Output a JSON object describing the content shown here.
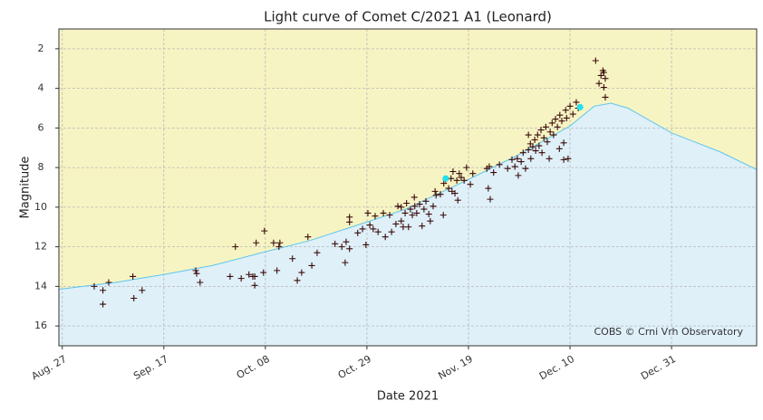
{
  "chart_data": {
    "type": "scatter",
    "title": "Light curve of Comet C/2021 A1 (Leonard)",
    "x_label": "Date 2021",
    "y_label": "Magnitude",
    "annotation": "COBS © Crni Vrh Observatory",
    "xlim": [
      238.3,
      382.6
    ],
    "ylim": [
      17,
      1
    ],
    "xticks": [
      {
        "value": 239,
        "label": "Aug. 27"
      },
      {
        "value": 260,
        "label": "Sep. 17"
      },
      {
        "value": 281,
        "label": "Oct. 08"
      },
      {
        "value": 302,
        "label": "Oct. 29"
      },
      {
        "value": 323,
        "label": "Nov. 19"
      },
      {
        "value": 344,
        "label": "Dec. 10"
      },
      {
        "value": 365,
        "label": "Dec. 31"
      }
    ],
    "yticks": [
      2,
      4,
      6,
      8,
      10,
      12,
      14,
      16
    ],
    "grid": true,
    "fill_above": "#f7f4c3",
    "fill_below": "#dff0f9",
    "series": [
      {
        "color": "#3a0a0a",
        "marker": "plus",
        "x": [
          245.6,
          247.4,
          247.4,
          248.6,
          253.6,
          253.8,
          255.5,
          266.6,
          266.8,
          267.5,
          273.7,
          274.8,
          276.0,
          277.6,
          278.4,
          278.8,
          278.8,
          279.1,
          280.6,
          280.8,
          282.7,
          283.4,
          283.8,
          284.0,
          286.6,
          287.6,
          288.5,
          289.8,
          290.6,
          291.7,
          295.4,
          296.8,
          297.5,
          297.7,
          298.4,
          298.4,
          298.4,
          300.1,
          301.1,
          301.8,
          302.2,
          302.6,
          303.3,
          303.7,
          304.3,
          305.4,
          305.8,
          306.7,
          307.1,
          308.0,
          308.4,
          309.1,
          309.1,
          309.5,
          309.9,
          310.2,
          310.6,
          311.0,
          311.4,
          311.8,
          311.9,
          312.3,
          312.9,
          313.4,
          313.8,
          314.2,
          314.8,
          315.1,
          315.7,
          316.1,
          316.3,
          317.2,
          317.8,
          317.9,
          318.3,
          318.9,
          319.4,
          319.6,
          319.8,
          320.2,
          320.6,
          320.8,
          321.1,
          321.5,
          322.1,
          322.6,
          323.4,
          323.9,
          326.8,
          327.1,
          327.3,
          327.5,
          328.2,
          329.4,
          331.1,
          332.0,
          332.6,
          333.1,
          333.3,
          333.9,
          334.3,
          334.8,
          335.4,
          335.4,
          335.8,
          335.9,
          336.3,
          336.7,
          336.9,
          337.3,
          337.6,
          338.0,
          338.2,
          338.6,
          339.0,
          339.3,
          339.7,
          339.9,
          340.3,
          340.6,
          341.0,
          341.4,
          341.8,
          341.9,
          342.3,
          342.7,
          342.7,
          343.1,
          343.3,
          343.6,
          344.0,
          344.6,
          345.3,
          345.7,
          349.3,
          350.0,
          350.4,
          350.8,
          351.0,
          351.3,
          351.3,
          351.0
        ],
        "values": [
          14.0,
          14.2,
          14.9,
          13.8,
          13.5,
          14.6,
          14.2,
          13.2,
          13.35,
          13.8,
          13.5,
          12.0,
          13.6,
          13.4,
          13.5,
          13.95,
          13.5,
          11.8,
          13.3,
          11.2,
          11.8,
          13.2,
          12.0,
          11.8,
          12.6,
          13.7,
          13.3,
          11.5,
          12.95,
          12.3,
          11.85,
          12.0,
          12.8,
          11.75,
          10.75,
          10.5,
          12.1,
          11.3,
          11.1,
          11.9,
          10.3,
          10.9,
          11.1,
          10.45,
          11.25,
          10.3,
          11.5,
          10.4,
          11.25,
          10.85,
          9.95,
          10.0,
          10.7,
          11.0,
          10.3,
          9.8,
          11.0,
          10.1,
          10.4,
          9.5,
          9.95,
          10.3,
          9.85,
          10.95,
          10.1,
          9.7,
          10.35,
          10.7,
          9.95,
          9.2,
          9.4,
          9.35,
          10.4,
          8.8,
          8.6,
          9.05,
          8.55,
          9.2,
          8.2,
          9.3,
          8.65,
          9.65,
          8.3,
          8.5,
          8.65,
          8.0,
          8.85,
          8.3,
          8.05,
          9.05,
          7.95,
          9.6,
          8.25,
          7.85,
          8.05,
          7.6,
          7.95,
          7.55,
          8.4,
          7.7,
          7.25,
          8.05,
          7.1,
          6.35,
          6.8,
          7.55,
          6.95,
          6.6,
          7.15,
          6.35,
          6.9,
          6.1,
          7.25,
          6.5,
          5.95,
          6.7,
          7.55,
          6.2,
          5.75,
          6.35,
          5.55,
          5.95,
          7.05,
          5.35,
          5.65,
          6.75,
          7.6,
          5.1,
          5.5,
          7.55,
          4.9,
          5.3,
          4.7,
          5.0,
          2.6,
          3.75,
          3.35,
          3.1,
          3.95,
          3.5,
          4.45,
          3.2
        ]
      },
      {
        "color": "#22e0f0",
        "marker": "dot",
        "x": [
          318.3,
          346.1
        ],
        "values": [
          8.55,
          4.95
        ]
      },
      {
        "color": "#5cc6ee",
        "marker": "line",
        "x": [
          238.3,
          250,
          260,
          270,
          281,
          290,
          302,
          310,
          323,
          333,
          344,
          349,
          352.5,
          356,
          365,
          375,
          382.6
        ],
        "values": [
          14.15,
          13.8,
          13.4,
          12.95,
          12.25,
          11.7,
          10.75,
          10.1,
          8.6,
          7.4,
          5.9,
          4.9,
          4.75,
          5.0,
          6.25,
          7.2,
          8.1
        ]
      }
    ]
  }
}
